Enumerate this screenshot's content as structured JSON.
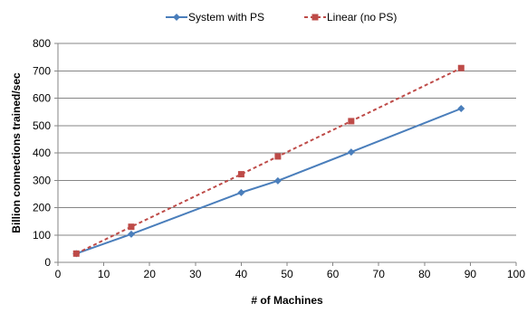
{
  "chart_data": {
    "type": "line",
    "xlabel": "# of Machines",
    "ylabel": "Billion connections  trained/sec",
    "xlim": [
      0,
      100
    ],
    "ylim": [
      0,
      800
    ],
    "xticks": [
      0,
      10,
      20,
      30,
      40,
      50,
      60,
      70,
      80,
      90,
      100
    ],
    "yticks": [
      0,
      100,
      200,
      300,
      400,
      500,
      600,
      700,
      800
    ],
    "grid": "horizontal",
    "legend_position": "top-center",
    "series": [
      {
        "name": "System with PS",
        "color": "#4a7ebb",
        "line_style": "solid",
        "marker": "diamond",
        "x": [
          4,
          16,
          40,
          48,
          64,
          88
        ],
        "y": [
          32,
          103,
          255,
          298,
          403,
          562
        ]
      },
      {
        "name": "Linear (no PS)",
        "color": "#be4b48",
        "line_style": "dashed",
        "marker": "square",
        "x": [
          4,
          16,
          40,
          48,
          64,
          88
        ],
        "y": [
          32,
          130,
          322,
          387,
          516,
          710
        ]
      }
    ]
  }
}
